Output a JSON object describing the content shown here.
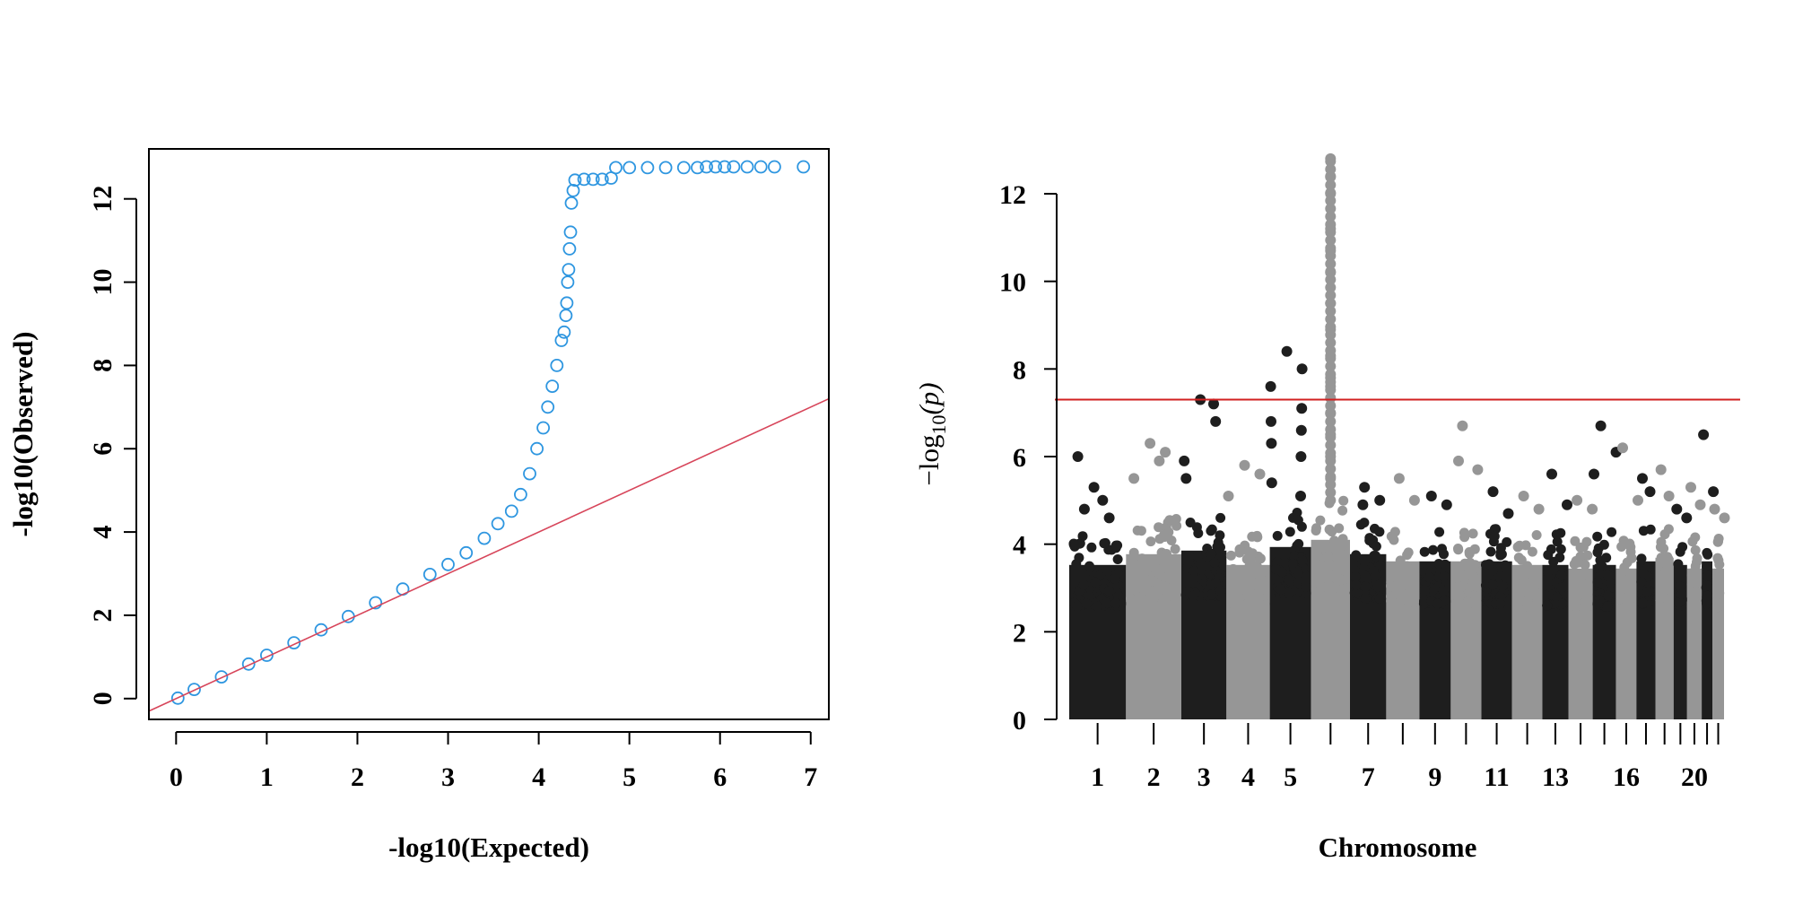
{
  "colors": {
    "qq_points": "#2e96e0",
    "reference_line": "#d7455a",
    "chrom_odd": "#1e1e1e",
    "chrom_even": "#969696",
    "threshold_line": "#d21f1f"
  },
  "chart_data": [
    {
      "type": "scatter",
      "kind": "qq-plot",
      "title": "",
      "xlabel": "-log10(Expected)",
      "ylabel": "-log10(Observed)",
      "xlim": [
        -0.3,
        7.2
      ],
      "ylim": [
        -0.5,
        13.2
      ],
      "xticks": [
        0,
        1,
        2,
        3,
        4,
        5,
        6,
        7
      ],
      "yticks": [
        0,
        2,
        4,
        6,
        8,
        10,
        12
      ],
      "grid": false,
      "point_style": "open-circle",
      "reference_line": {
        "slope": 1,
        "intercept": 0
      },
      "series": [
        {
          "points": [
            [
              0.02,
              0.01
            ],
            [
              0.2,
              0.22
            ],
            [
              0.5,
              0.52
            ],
            [
              0.8,
              0.83
            ],
            [
              1.0,
              1.04
            ],
            [
              1.3,
              1.34
            ],
            [
              1.6,
              1.65
            ],
            [
              1.9,
              1.97
            ],
            [
              2.2,
              2.3
            ],
            [
              2.5,
              2.63
            ],
            [
              2.8,
              2.98
            ],
            [
              3.0,
              3.22
            ],
            [
              3.2,
              3.5
            ],
            [
              3.4,
              3.85
            ],
            [
              3.55,
              4.2
            ],
            [
              3.7,
              4.5
            ],
            [
              3.8,
              4.9
            ],
            [
              3.9,
              5.4
            ],
            [
              3.98,
              6.0
            ],
            [
              4.05,
              6.5
            ],
            [
              4.1,
              7.0
            ],
            [
              4.15,
              7.5
            ],
            [
              4.2,
              8.0
            ],
            [
              4.25,
              8.6
            ],
            [
              4.28,
              8.8
            ],
            [
              4.3,
              9.2
            ],
            [
              4.31,
              9.5
            ],
            [
              4.32,
              10.0
            ],
            [
              4.33,
              10.3
            ],
            [
              4.34,
              10.8
            ],
            [
              4.35,
              11.2
            ],
            [
              4.36,
              11.9
            ],
            [
              4.38,
              12.2
            ],
            [
              4.4,
              12.45
            ],
            [
              4.5,
              12.47
            ],
            [
              4.6,
              12.47
            ],
            [
              4.7,
              12.47
            ],
            [
              4.8,
              12.5
            ],
            [
              4.85,
              12.75
            ],
            [
              5.0,
              12.75
            ],
            [
              5.2,
              12.75
            ],
            [
              5.4,
              12.75
            ],
            [
              5.6,
              12.75
            ],
            [
              5.75,
              12.75
            ],
            [
              5.85,
              12.77
            ],
            [
              5.95,
              12.77
            ],
            [
              6.05,
              12.77
            ],
            [
              6.15,
              12.77
            ],
            [
              6.3,
              12.77
            ],
            [
              6.45,
              12.77
            ],
            [
              6.6,
              12.77
            ],
            [
              6.92,
              12.77
            ]
          ]
        }
      ]
    },
    {
      "type": "scatter",
      "kind": "manhattan-plot",
      "title": "",
      "xlabel": "Chromosome",
      "ylabel": "−log",
      "ylabel_sub": "10",
      "ylabel_suffix": "(p)",
      "ylim": [
        0,
        13
      ],
      "yticks": [
        0,
        2,
        4,
        6,
        8,
        10,
        12
      ],
      "grid": false,
      "threshold": 7.3,
      "chromosomes": [
        {
          "chr": 1,
          "label": "1",
          "noise_top": 4.3,
          "peaks": [
            5.3,
            4.6,
            6.0,
            5.0,
            4.8
          ]
        },
        {
          "chr": 2,
          "label": "2",
          "noise_top": 4.6,
          "peaks": [
            6.3,
            6.1,
            5.5,
            5.9
          ]
        },
        {
          "chr": 3,
          "label": "3",
          "noise_top": 4.7,
          "peaks": [
            7.3,
            6.8,
            5.9,
            7.2,
            5.5
          ]
        },
        {
          "chr": 4,
          "label": "4",
          "noise_top": 4.3,
          "peaks": [
            5.8,
            5.6,
            5.1
          ]
        },
        {
          "chr": 5,
          "label": "5",
          "noise_top": 4.8,
          "peaks": [
            8.4,
            8.0,
            7.6,
            7.1,
            6.8,
            6.6,
            6.3,
            6.0,
            5.4,
            5.1
          ]
        },
        {
          "chr": 6,
          "label": "",
          "noise_top": 5.0,
          "peaks": [
            12.8,
            12.4,
            12.0,
            11.2,
            10.7,
            10.2,
            9.5,
            8.9,
            8.3,
            7.8,
            7.6,
            7.0,
            6.5,
            6.0,
            5.5
          ]
        },
        {
          "chr": 7,
          "label": "7",
          "noise_top": 4.6,
          "peaks": [
            5.3,
            5.0,
            4.9
          ]
        },
        {
          "chr": 8,
          "label": "",
          "noise_top": 4.4,
          "peaks": [
            5.5,
            5.0
          ]
        },
        {
          "chr": 9,
          "label": "9",
          "noise_top": 4.4,
          "peaks": [
            5.1,
            4.9
          ]
        },
        {
          "chr": 10,
          "label": "",
          "noise_top": 4.4,
          "peaks": [
            6.7,
            5.7,
            5.9
          ]
        },
        {
          "chr": 11,
          "label": "11",
          "noise_top": 4.4,
          "peaks": [
            5.2,
            4.7
          ]
        },
        {
          "chr": 12,
          "label": "",
          "noise_top": 4.3,
          "peaks": [
            5.1,
            4.8
          ]
        },
        {
          "chr": 13,
          "label": "13",
          "noise_top": 4.3,
          "peaks": [
            5.6,
            4.9
          ]
        },
        {
          "chr": 14,
          "label": "",
          "noise_top": 4.2,
          "peaks": [
            5.0,
            4.8
          ]
        },
        {
          "chr": 15,
          "label": "",
          "noise_top": 4.3,
          "peaks": [
            6.7,
            6.1,
            5.6
          ]
        },
        {
          "chr": 16,
          "label": "16",
          "noise_top": 4.2,
          "peaks": [
            6.2,
            5.0
          ]
        },
        {
          "chr": 17,
          "label": "",
          "noise_top": 4.4,
          "peaks": [
            5.5,
            5.2
          ]
        },
        {
          "chr": 18,
          "label": "",
          "noise_top": 4.5,
          "peaks": [
            5.7,
            5.1
          ]
        },
        {
          "chr": 19,
          "label": "",
          "noise_top": 4.3,
          "peaks": [
            4.8,
            4.6
          ]
        },
        {
          "chr": 20,
          "label": "20",
          "noise_top": 4.2,
          "peaks": [
            5.3,
            4.9
          ]
        },
        {
          "chr": 21,
          "label": "",
          "noise_top": 4.4,
          "peaks": [
            6.5,
            5.2
          ]
        },
        {
          "chr": 22,
          "label": "",
          "noise_top": 4.2,
          "peaks": [
            4.8,
            4.6
          ]
        }
      ]
    }
  ]
}
